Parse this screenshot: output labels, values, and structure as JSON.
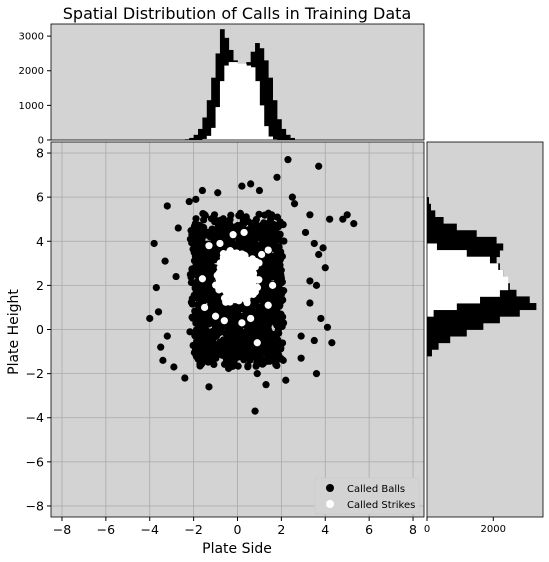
{
  "chart_data": {
    "type": "scatter",
    "title": "Spatial Distribution of Calls in Training Data",
    "xlabel": "Plate Side",
    "ylabel": "Plate Height",
    "xlim": [
      -8.5,
      8.5
    ],
    "ylim": [
      -8.5,
      8.5
    ],
    "xticks": [
      "−8",
      "−6",
      "−4",
      "−2",
      "0",
      "2",
      "4",
      "6",
      "8"
    ],
    "yticks": [
      "8",
      "6",
      "4",
      "2",
      "0",
      "−2",
      "−4",
      "−6",
      "−8"
    ],
    "grid": true,
    "legend_position": "bottom-right",
    "colors": {
      "balls": "#000000",
      "strikes": "#ffffff",
      "background": "#d3d3d3"
    },
    "series": [
      {
        "name": "Called Balls",
        "color": "#000000",
        "core": {
          "x_range": [
            -2.0,
            2.0
          ],
          "y_range": [
            -1.5,
            5.0
          ]
        },
        "outliers": [
          {
            "x": 2.3,
            "y": 7.7
          },
          {
            "x": 1.8,
            "y": 6.9
          },
          {
            "x": 3.7,
            "y": 7.4
          },
          {
            "x": 0.2,
            "y": 6.5
          },
          {
            "x": 0.6,
            "y": 6.6
          },
          {
            "x": -1.6,
            "y": 6.3
          },
          {
            "x": -0.9,
            "y": 6.2
          },
          {
            "x": -2.2,
            "y": 5.8
          },
          {
            "x": -3.2,
            "y": 5.6
          },
          {
            "x": 2.6,
            "y": 5.7
          },
          {
            "x": 3.3,
            "y": 5.2
          },
          {
            "x": 4.2,
            "y": 5.0
          },
          {
            "x": 4.8,
            "y": 5.0
          },
          {
            "x": 5.3,
            "y": 4.8
          },
          {
            "x": 5.0,
            "y": 5.2
          },
          {
            "x": -3.8,
            "y": 3.9
          },
          {
            "x": 3.5,
            "y": 3.9
          },
          {
            "x": 3.9,
            "y": 3.7
          },
          {
            "x": 4.0,
            "y": 2.8
          },
          {
            "x": 3.7,
            "y": 3.4
          },
          {
            "x": -3.3,
            "y": 3.1
          },
          {
            "x": 4.1,
            "y": 0.1
          },
          {
            "x": 3.5,
            "y": -0.5
          },
          {
            "x": 4.3,
            "y": -0.6
          },
          {
            "x": 3.8,
            "y": 0.5
          },
          {
            "x": -4.0,
            "y": 0.5
          },
          {
            "x": -3.6,
            "y": 0.8
          },
          {
            "x": -3.5,
            "y": -0.8
          },
          {
            "x": -3.4,
            "y": -1.4
          },
          {
            "x": -3.2,
            "y": -0.3
          },
          {
            "x": 3.6,
            "y": -2.0
          },
          {
            "x": 2.2,
            "y": -2.3
          },
          {
            "x": -2.4,
            "y": -2.2
          },
          {
            "x": -1.3,
            "y": -2.6
          },
          {
            "x": 0.9,
            "y": -2.0
          },
          {
            "x": 0.8,
            "y": -3.7
          },
          {
            "x": 3.6,
            "y": 2.0
          },
          {
            "x": 3.3,
            "y": 1.2
          },
          {
            "x": -3.7,
            "y": 1.9
          },
          {
            "x": 2.9,
            "y": -1.3
          },
          {
            "x": -2.9,
            "y": -1.7
          },
          {
            "x": 2.5,
            "y": 6.0
          },
          {
            "x": -1.9,
            "y": 5.9
          },
          {
            "x": 1.0,
            "y": 6.3
          },
          {
            "x": -2.7,
            "y": 4.6
          },
          {
            "x": 3.1,
            "y": 4.4
          },
          {
            "x": 2.9,
            "y": -0.3
          },
          {
            "x": -2.8,
            "y": 2.4
          },
          {
            "x": 3.3,
            "y": 2.2
          },
          {
            "x": 1.3,
            "y": -2.5
          }
        ]
      },
      {
        "name": "Called Strikes",
        "color": "#ffffff",
        "core": {
          "x_range": [
            -1.3,
            1.3
          ],
          "y_range": [
            0.8,
            4.0
          ]
        },
        "outliers": [
          {
            "x": -0.2,
            "y": 4.3
          },
          {
            "x": 0.3,
            "y": 4.4
          },
          {
            "x": -1.3,
            "y": 3.8
          },
          {
            "x": 1.4,
            "y": 3.6
          },
          {
            "x": -1.6,
            "y": 2.3
          },
          {
            "x": 1.6,
            "y": 2.0
          },
          {
            "x": -1.0,
            "y": 0.6
          },
          {
            "x": 0.6,
            "y": 0.5
          },
          {
            "x": 0.2,
            "y": 0.3
          },
          {
            "x": -1.5,
            "y": 1.0
          },
          {
            "x": 1.4,
            "y": 1.1
          },
          {
            "x": 0.9,
            "y": -0.6
          },
          {
            "x": -0.6,
            "y": 0.4
          },
          {
            "x": -0.8,
            "y": 3.9
          },
          {
            "x": 1.1,
            "y": 3.4
          }
        ]
      }
    ],
    "top_histogram": {
      "ylim": [
        0,
        3350
      ],
      "yticks": [
        "0",
        "1000",
        "2000",
        "3000"
      ],
      "bin_edges": [
        -2.4,
        -2.2,
        -2.0,
        -1.8,
        -1.6,
        -1.4,
        -1.2,
        -1.0,
        -0.8,
        -0.6,
        -0.4,
        -0.2,
        0.0,
        0.2,
        0.4,
        0.6,
        0.8,
        1.0,
        1.2,
        1.4,
        1.6,
        1.8,
        2.0,
        2.2,
        2.4,
        2.6
      ],
      "balls_heights": [
        20,
        60,
        150,
        320,
        650,
        1150,
        1800,
        2500,
        3200,
        2950,
        2600,
        2300,
        2150,
        2100,
        2250,
        2550,
        2800,
        2650,
        2300,
        1800,
        1150,
        600,
        320,
        150,
        60
      ],
      "strikes_heights": [
        0,
        0,
        0,
        0,
        30,
        120,
        350,
        950,
        1700,
        2150,
        2250,
        2250,
        2200,
        2200,
        2150,
        2100,
        1700,
        1000,
        400,
        100,
        20,
        0,
        0,
        0,
        0
      ]
    },
    "right_histogram": {
      "xlim": [
        0,
        3500
      ],
      "xticks": [
        "0",
        "2000"
      ],
      "bin_edges": [
        -1.2,
        -0.9,
        -0.6,
        -0.3,
        0.0,
        0.3,
        0.6,
        0.9,
        1.2,
        1.5,
        1.8,
        2.1,
        2.4,
        2.7,
        3.0,
        3.3,
        3.6,
        3.9,
        4.2,
        4.5,
        4.8,
        5.1,
        5.4,
        5.7,
        6.0
      ],
      "balls_widths": [
        150,
        350,
        700,
        1200,
        1700,
        2200,
        2800,
        3300,
        3100,
        2700,
        2500,
        2400,
        2300,
        2200,
        2100,
        2200,
        2300,
        2100,
        1500,
        900,
        500,
        250,
        120,
        60
      ],
      "strikes_widths": [
        0,
        0,
        0,
        0,
        0,
        0,
        200,
        900,
        1600,
        2200,
        2450,
        2450,
        2300,
        2150,
        1900,
        1200,
        300,
        0,
        0,
        0,
        0,
        0,
        0,
        0
      ]
    }
  }
}
